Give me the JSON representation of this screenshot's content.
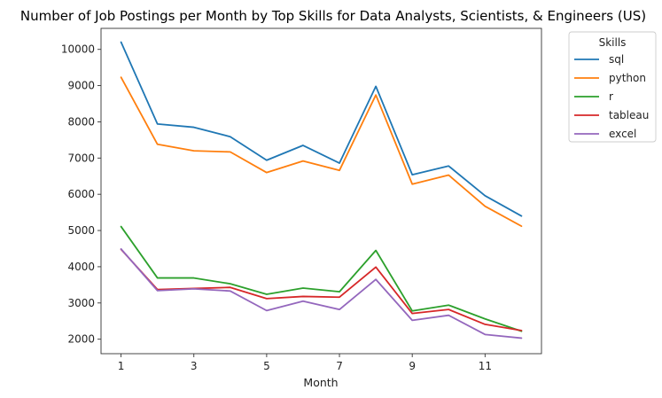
{
  "chart_data": {
    "type": "line",
    "title": "Number of Job Postings per Month by Top Skills for Data Analysts, Scientists, & Engineers (US)",
    "xlabel": "Month",
    "ylabel": "",
    "x": [
      1,
      2,
      3,
      4,
      5,
      6,
      7,
      8,
      9,
      10,
      11,
      12
    ],
    "xticks": [
      "1",
      "3",
      "5",
      "7",
      "9",
      "11"
    ],
    "yticks": [
      "2000",
      "3000",
      "4000",
      "5000",
      "6000",
      "7000",
      "8000",
      "9000",
      "10000"
    ],
    "xlim": [
      0.45,
      12.55
    ],
    "ylim": [
      1600,
      10580
    ],
    "grid": false,
    "legend": {
      "title": "Skills",
      "placement": "outside-top-right"
    },
    "series": [
      {
        "name": "sql",
        "color": "#1f77b4",
        "values": [
          10200,
          7940,
          7850,
          7590,
          6940,
          7350,
          6860,
          8980,
          6540,
          6780,
          5960,
          5400
        ]
      },
      {
        "name": "python",
        "color": "#ff7f0e",
        "values": [
          9230,
          7380,
          7200,
          7170,
          6600,
          6920,
          6660,
          8740,
          6280,
          6530,
          5670,
          5120
        ]
      },
      {
        "name": "r",
        "color": "#2ca02c",
        "values": [
          5110,
          3690,
          3690,
          3530,
          3240,
          3410,
          3310,
          4450,
          2780,
          2940,
          2560,
          2220
        ]
      },
      {
        "name": "tableau",
        "color": "#d62728",
        "values": [
          4480,
          3370,
          3400,
          3430,
          3120,
          3180,
          3160,
          3990,
          2710,
          2820,
          2410,
          2240
        ]
      },
      {
        "name": "excel",
        "color": "#9467bd",
        "values": [
          4490,
          3340,
          3390,
          3330,
          2790,
          3050,
          2820,
          3650,
          2520,
          2660,
          2130,
          2030
        ]
      }
    ]
  }
}
